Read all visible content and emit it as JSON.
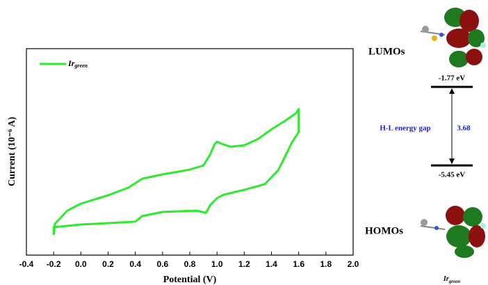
{
  "chart_data": {
    "type": "line",
    "xlabel": "Potential (V)",
    "ylabel": "Current (10⁻⁶ A)",
    "xlim": [
      -0.4,
      2.0
    ],
    "ylim": [
      0,
      100
    ],
    "xticks": [
      -0.4,
      -0.2,
      {
        "value": 0,
        "label": "0.0"
      },
      0.2,
      0.4,
      0.6,
      0.8,
      {
        "value": 1,
        "label": "1.0"
      },
      1.2,
      1.4,
      1.6,
      1.8,
      {
        "value": 2,
        "label": "2.0"
      }
    ],
    "legend": "upper left",
    "series": [
      {
        "name": "Ir",
        "name_subscript": "green",
        "color": "#2eea2e",
        "x": [
          -0.2,
          -0.19,
          -0.1,
          0.0,
          0.2,
          0.35,
          0.45,
          0.6,
          0.8,
          0.9,
          0.95,
          0.98,
          1.0,
          1.05,
          1.1,
          1.2,
          1.3,
          1.4,
          1.5,
          1.58,
          1.6,
          1.6,
          1.55,
          1.45,
          1.35,
          1.2,
          1.05,
          1.0,
          0.95,
          0.92,
          0.85,
          0.6,
          0.45,
          0.4,
          0.2,
          0.0,
          -0.2,
          -0.2
        ],
        "values": [
          9.8,
          15.2,
          21.5,
          24.9,
          29.0,
          32.7,
          37.0,
          39.1,
          41.4,
          43.4,
          48.8,
          53.5,
          54.9,
          53.5,
          52.5,
          53.2,
          56.2,
          60.9,
          65.0,
          68.7,
          70.7,
          59.6,
          54.5,
          41.1,
          34.3,
          31.6,
          29.3,
          27.6,
          24.2,
          20.5,
          21.5,
          20.9,
          18.9,
          16.2,
          15.5,
          14.8,
          13.5,
          9.8
        ]
      }
    ]
  },
  "energy_diagram": {
    "lumo_label": "LUMOs",
    "lumo_energy": "-1.77 eV",
    "gap_label": "H-L energy gap",
    "gap_value": "3.68",
    "homo_energy": "-5.45 eV",
    "homo_label": "HOMOs",
    "caption": "Ir",
    "caption_subscript": "green"
  }
}
